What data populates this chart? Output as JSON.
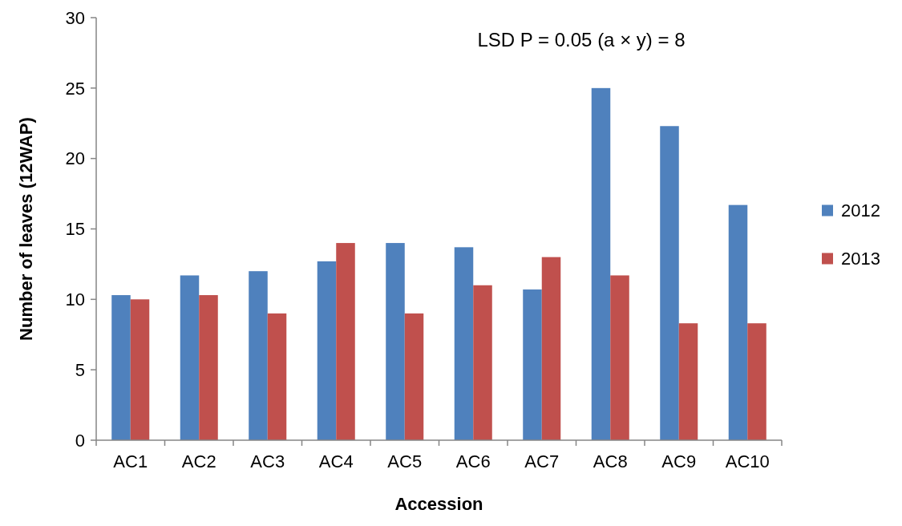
{
  "chart_data": {
    "type": "bar",
    "xlabel": "Accession",
    "ylabel": "Number of leaves (12WAP)",
    "categories": [
      "AC1",
      "AC2",
      "AC3",
      "AC4",
      "AC5",
      "AC6",
      "AC7",
      "AC8",
      "AC9",
      "AC10"
    ],
    "series": [
      {
        "name": "2012",
        "color": "#4f81bd",
        "values": [
          10.3,
          11.7,
          12,
          12.7,
          14,
          13.7,
          10.7,
          25,
          22.3,
          16.7
        ]
      },
      {
        "name": "2013",
        "color": "#c0504d",
        "values": [
          10,
          10.3,
          9,
          14,
          9,
          11,
          13,
          11.7,
          8.3,
          8.3
        ]
      }
    ],
    "ylim": [
      0,
      30
    ],
    "yticks": [
      0,
      5,
      10,
      15,
      20,
      25,
      30
    ],
    "grid": false,
    "legend": "right",
    "annotations": [
      "LSD P = 0.05 (a × y) = 8"
    ]
  }
}
